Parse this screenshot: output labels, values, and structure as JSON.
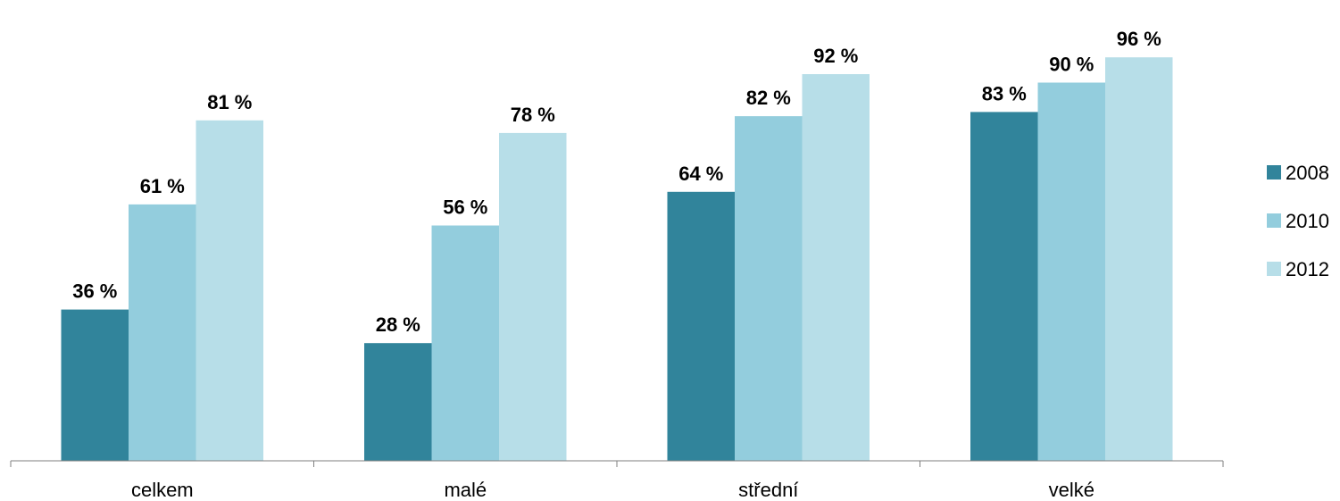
{
  "chart_data": {
    "type": "bar",
    "categories": [
      "celkem",
      "malé",
      "střední",
      "velké"
    ],
    "series": [
      {
        "name": "2008",
        "values": [
          36,
          28,
          64,
          83
        ],
        "labels": [
          "36 %",
          "28 %",
          "64 %",
          "83 %"
        ],
        "color": "#31849b"
      },
      {
        "name": "2010",
        "values": [
          61,
          56,
          82,
          90
        ],
        "labels": [
          "61 %",
          "56 %",
          "82 %",
          "90 %"
        ],
        "color": "#93cddd"
      },
      {
        "name": "2012",
        "values": [
          81,
          78,
          92,
          96
        ],
        "labels": [
          "81 %",
          "78 %",
          "92 %",
          "96 %"
        ],
        "color": "#b7dee8"
      }
    ],
    "ylim": [
      0,
      100
    ],
    "grid": false,
    "legend_position": "right"
  }
}
